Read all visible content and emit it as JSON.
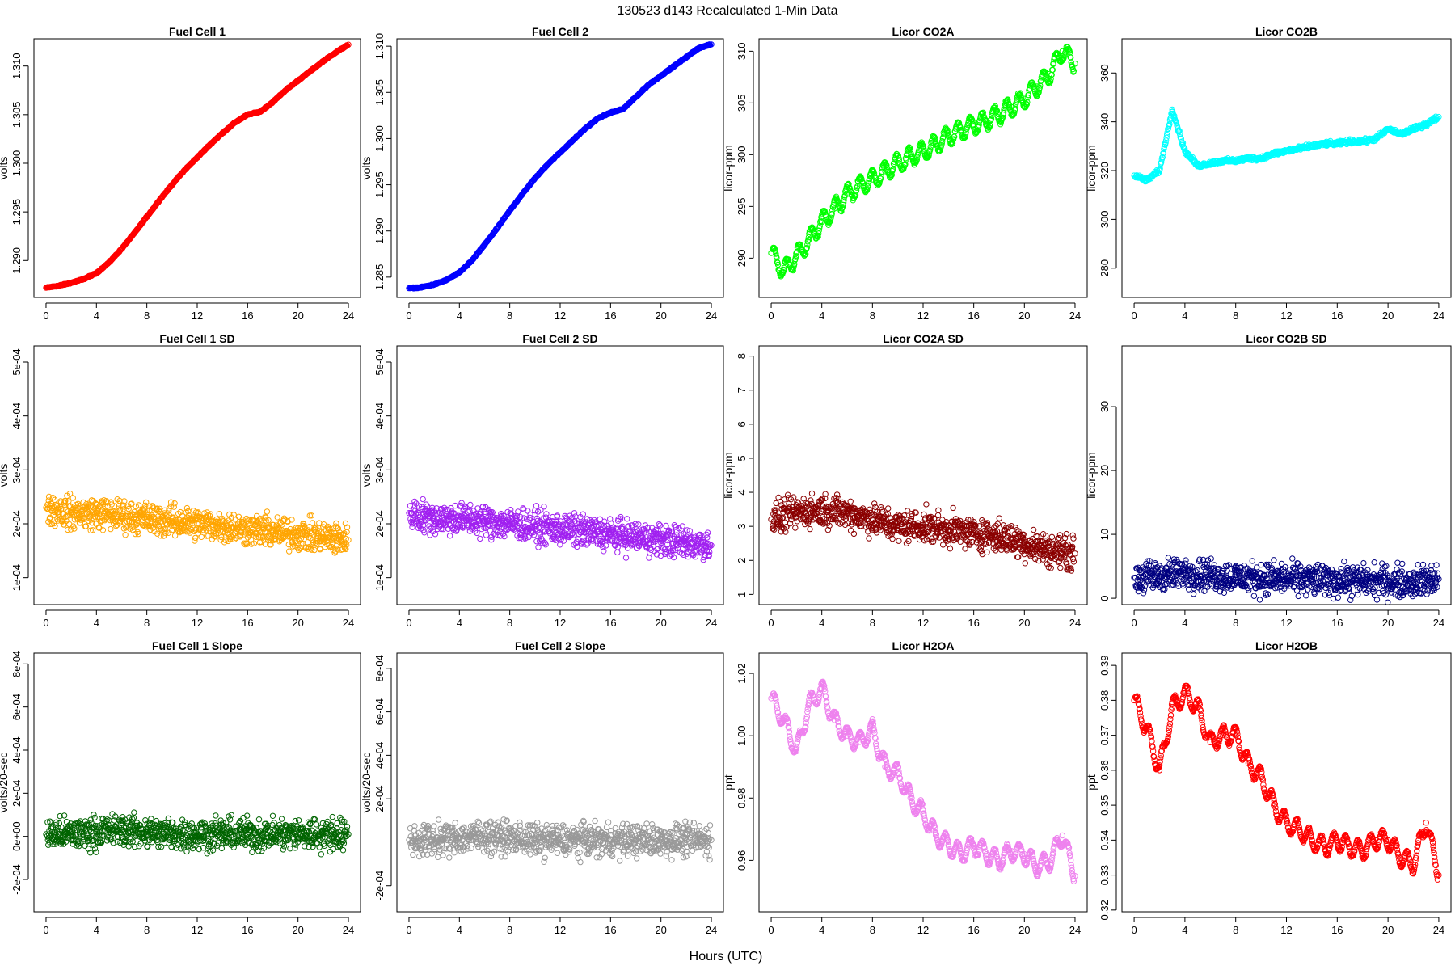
{
  "figure": {
    "title": "130523   d143   Recalculated 1-Min Data",
    "xlabel": "Hours (UTC)"
  },
  "chart_data": [
    {
      "type": "scatter",
      "id": "fc1",
      "title": "Fuel Cell 1",
      "ylabel": "volts",
      "color": "#ff0000",
      "xlim": [
        -0.96,
        24.96
      ],
      "ylim": [
        1.2862,
        1.3128
      ],
      "xticks": [
        0,
        4,
        8,
        12,
        16,
        20,
        24
      ],
      "yticks": [
        "1.290",
        "1.295",
        "1.300",
        "1.305",
        "1.310"
      ],
      "ytick_values": [
        1.29,
        1.295,
        1.3,
        1.305,
        1.31
      ],
      "x": [
        0,
        1,
        2,
        3,
        4,
        5,
        6,
        7,
        8,
        9,
        10,
        11,
        12,
        13,
        14,
        15,
        16,
        17,
        18,
        19,
        20,
        21,
        22,
        23,
        24
      ],
      "y": [
        1.2872,
        1.2874,
        1.2877,
        1.2881,
        1.2887,
        1.2898,
        1.2912,
        1.2928,
        1.2945,
        1.2962,
        1.2978,
        1.2993,
        1.3006,
        1.3019,
        1.3031,
        1.3042,
        1.305,
        1.3053,
        1.3063,
        1.3075,
        1.3085,
        1.3095,
        1.3105,
        1.3114,
        1.3122
      ]
    },
    {
      "type": "scatter",
      "id": "fc2",
      "title": "Fuel Cell 2",
      "ylabel": "volts",
      "color": "#0000ff",
      "xlim": [
        -0.96,
        24.96
      ],
      "ylim": [
        1.2828,
        1.3108
      ],
      "xticks": [
        0,
        4,
        8,
        12,
        16,
        20,
        24
      ],
      "yticks": [
        "1.285",
        "1.290",
        "1.295",
        "1.300",
        "1.305",
        "1.310"
      ],
      "ytick_values": [
        1.285,
        1.29,
        1.295,
        1.3,
        1.305,
        1.31
      ],
      "x": [
        0,
        1,
        2,
        3,
        4,
        5,
        6,
        7,
        8,
        9,
        10,
        11,
        12,
        13,
        14,
        15,
        16,
        17,
        18,
        19,
        20,
        21,
        22,
        23,
        24
      ],
      "y": [
        1.2838,
        1.2839,
        1.2842,
        1.2847,
        1.2855,
        1.2868,
        1.2885,
        1.2903,
        1.2922,
        1.294,
        1.2957,
        1.2972,
        1.2985,
        1.2998,
        1.3011,
        1.3022,
        1.3028,
        1.3032,
        1.3045,
        1.3058,
        1.3068,
        1.3078,
        1.3088,
        1.3098,
        1.3102
      ]
    },
    {
      "type": "scatter",
      "id": "co2a",
      "title": "Licor CO2A",
      "ylabel": "licor-ppm",
      "color": "#00ff00",
      "xlim": [
        -0.96,
        24.96
      ],
      "ylim": [
        286.2,
        311.2
      ],
      "xticks": [
        0,
        4,
        8,
        12,
        16,
        20,
        24
      ],
      "yticks": [
        "290",
        "295",
        "300",
        "305",
        "310"
      ],
      "ytick_values": [
        290,
        295,
        300,
        305,
        310
      ],
      "x": [
        0,
        1,
        2,
        3,
        4,
        5,
        6,
        7,
        8,
        9,
        10,
        11,
        12,
        13,
        14,
        15,
        16,
        17,
        18,
        19,
        20,
        21,
        22,
        23,
        24
      ],
      "y": [
        290.5,
        288.8,
        290.2,
        291.8,
        293.5,
        294.8,
        296.2,
        297.0,
        297.6,
        298.4,
        299.2,
        299.8,
        300.3,
        301.0,
        301.8,
        302.4,
        302.9,
        303.3,
        303.9,
        304.6,
        305.4,
        306.6,
        307.8,
        310.0,
        308.8
      ]
    },
    {
      "type": "scatter",
      "id": "co2b",
      "title": "Licor CO2B",
      "ylabel": "licor-ppm",
      "color": "#00ffff",
      "xlim": [
        -0.96,
        24.96
      ],
      "ylim": [
        268,
        374
      ],
      "xticks": [
        0,
        4,
        8,
        12,
        16,
        20,
        24
      ],
      "yticks": [
        "280",
        "300",
        "320",
        "340",
        "360"
      ],
      "ytick_values": [
        280,
        300,
        320,
        340,
        360
      ],
      "x": [
        0,
        1,
        2,
        3,
        4,
        5,
        6,
        7,
        8,
        9,
        10,
        11,
        12,
        13,
        14,
        15,
        16,
        17,
        18,
        19,
        20,
        21,
        22,
        23,
        24
      ],
      "y": [
        318,
        316,
        320,
        345,
        328,
        322,
        323,
        324,
        324,
        325,
        325,
        327,
        328,
        329,
        330,
        331,
        331,
        332,
        332,
        333,
        337,
        335,
        337,
        339,
        342
      ]
    },
    {
      "type": "scatter",
      "id": "fc1sd",
      "title": "Fuel Cell 1 SD",
      "ylabel": "volts",
      "color": "#ffa500",
      "xlim": [
        -0.96,
        24.96
      ],
      "ylim": [
        5e-05,
        0.00053
      ],
      "xticks": [
        0,
        4,
        8,
        12,
        16,
        20,
        24
      ],
      "yticks": [
        "1e-04",
        "2e-04",
        "3e-04",
        "4e-04",
        "5e-04"
      ],
      "ytick_values": [
        0.0001,
        0.0002,
        0.0003,
        0.0004,
        0.0005
      ],
      "x": [
        0,
        2,
        4,
        6,
        8,
        10,
        12,
        14,
        16,
        18,
        20,
        22,
        24
      ],
      "y": [
        0.00023,
        0.00022,
        0.00022,
        0.000215,
        0.00021,
        0.000205,
        0.0002,
        0.000195,
        0.00019,
        0.000185,
        0.00018,
        0.000175,
        0.00017
      ]
    },
    {
      "type": "scatter",
      "id": "fc2sd",
      "title": "Fuel Cell 2 SD",
      "ylabel": "volts",
      "color": "#a020f0",
      "xlim": [
        -0.96,
        24.96
      ],
      "ylim": [
        5e-05,
        0.00053
      ],
      "xticks": [
        0,
        4,
        8,
        12,
        16,
        20,
        24
      ],
      "yticks": [
        "1e-04",
        "2e-04",
        "3e-04",
        "4e-04",
        "5e-04"
      ],
      "ytick_values": [
        0.0001,
        0.0002,
        0.0003,
        0.0004,
        0.0005
      ],
      "x": [
        0,
        2,
        4,
        6,
        8,
        10,
        12,
        14,
        16,
        18,
        20,
        22,
        24
      ],
      "y": [
        0.00022,
        0.00021,
        0.00021,
        0.000205,
        0.0002,
        0.000195,
        0.00019,
        0.000185,
        0.00018,
        0.000175,
        0.00017,
        0.000165,
        0.00016
      ]
    },
    {
      "type": "scatter",
      "id": "co2asd",
      "title": "Licor CO2A SD",
      "ylabel": "licor-ppm",
      "color": "#8b0000",
      "xlim": [
        -0.96,
        24.96
      ],
      "ylim": [
        0.7,
        8.3
      ],
      "xticks": [
        0,
        4,
        8,
        12,
        16,
        20,
        24
      ],
      "yticks": [
        "1",
        "2",
        "3",
        "4",
        "5",
        "6",
        "7",
        "8"
      ],
      "ytick_values": [
        1,
        2,
        3,
        4,
        5,
        6,
        7,
        8
      ],
      "x": [
        0,
        2,
        4,
        6,
        8,
        10,
        12,
        14,
        16,
        18,
        20,
        22,
        24
      ],
      "y": [
        3.2,
        3.4,
        3.5,
        3.4,
        3.2,
        3.0,
        3.0,
        2.9,
        2.8,
        2.7,
        2.5,
        2.3,
        2.2
      ]
    },
    {
      "type": "scatter",
      "id": "co2bsd",
      "title": "Licor CO2B SD",
      "ylabel": "licor-ppm",
      "color": "#000080",
      "xlim": [
        -0.96,
        24.96
      ],
      "ylim": [
        -1,
        39.5
      ],
      "xticks": [
        0,
        4,
        8,
        12,
        16,
        20,
        24
      ],
      "yticks": [
        "0",
        "10",
        "20",
        "30"
      ],
      "ytick_values": [
        0,
        10,
        20,
        30
      ],
      "x": [
        0,
        2,
        4,
        6,
        8,
        10,
        12,
        14,
        16,
        18,
        20,
        22,
        24
      ],
      "y": [
        3.2,
        3.5,
        4.0,
        3.6,
        3.3,
        3.1,
        3.0,
        2.9,
        2.8,
        2.7,
        2.6,
        2.5,
        3.0
      ]
    },
    {
      "type": "scatter",
      "id": "fc1slope",
      "title": "Fuel Cell 1 Slope",
      "ylabel": "volts/20-sec",
      "color": "#006400",
      "xlim": [
        -0.96,
        24.96
      ],
      "ylim": [
        -0.00035,
        0.00085
      ],
      "xticks": [
        0,
        4,
        8,
        12,
        16,
        20,
        24
      ],
      "yticks": [
        "-2e-04",
        "0e+00",
        "2e-04",
        "4e-04",
        "6e-04",
        "8e-04"
      ],
      "ytick_values": [
        -0.0002,
        0,
        0.0002,
        0.0004,
        0.0006,
        0.0008
      ],
      "x": [
        0,
        2,
        4,
        6,
        8,
        10,
        12,
        14,
        16,
        18,
        20,
        22,
        24
      ],
      "y": [
        1e-05,
        1e-05,
        2e-05,
        3e-05,
        2e-05,
        1e-05,
        1e-05,
        1e-05,
        1e-05,
        1e-05,
        1e-05,
        1e-05,
        1e-05
      ]
    },
    {
      "type": "scatter",
      "id": "fc2slope",
      "title": "Fuel Cell 2 Slope",
      "ylabel": "volts/20-sec",
      "color": "#999999",
      "xlim": [
        -0.96,
        24.96
      ],
      "ylim": [
        -0.00032,
        0.00087
      ],
      "xticks": [
        0,
        4,
        8,
        12,
        16,
        20,
        24
      ],
      "yticks": [
        "-2e-04",
        "2e-04",
        "4e-04",
        "6e-04",
        "8e-04"
      ],
      "ytick_values": [
        -0.0002,
        0.0002,
        0.0004,
        0.0006,
        0.0008
      ],
      "x": [
        0,
        2,
        4,
        6,
        8,
        10,
        12,
        14,
        16,
        18,
        20,
        22,
        24
      ],
      "y": [
        1e-05,
        1e-05,
        2e-05,
        3e-05,
        2e-05,
        1e-05,
        1e-05,
        1e-05,
        1e-05,
        1e-05,
        1e-05,
        1e-05,
        1e-05
      ]
    },
    {
      "type": "scatter",
      "id": "h2oa",
      "title": "Licor H2OA",
      "ylabel": "ppt",
      "color": "#ee82ee",
      "xlim": [
        -0.96,
        24.96
      ],
      "ylim": [
        0.9435,
        1.0265
      ],
      "xticks": [
        0,
        4,
        8,
        12,
        16,
        20,
        24
      ],
      "yticks": [
        "0.96",
        "0.98",
        "1.00",
        "1.02"
      ],
      "ytick_values": [
        0.96,
        0.98,
        1.0,
        1.02
      ],
      "x": [
        0,
        1,
        2,
        3,
        4,
        5,
        6,
        7,
        8,
        9,
        10,
        11,
        12,
        13,
        14,
        15,
        16,
        17,
        18,
        19,
        20,
        21,
        22,
        23,
        24
      ],
      "y": [
        1.012,
        1.005,
        0.995,
        1.01,
        1.015,
        1.005,
        1.0,
        0.998,
        1.002,
        0.99,
        0.988,
        0.98,
        0.975,
        0.968,
        0.965,
        0.962,
        0.965,
        0.962,
        0.96,
        0.963,
        0.962,
        0.958,
        0.96,
        0.968,
        0.955
      ]
    },
    {
      "type": "scatter",
      "id": "h2ob",
      "title": "Licor H2OB",
      "ylabel": "ppt",
      "color": "#ff0000",
      "xlim": [
        -0.96,
        24.96
      ],
      "ylim": [
        0.3195,
        0.3935
      ],
      "xticks": [
        0,
        4,
        8,
        12,
        16,
        20,
        24
      ],
      "yticks": [
        "0.32",
        "0.33",
        "0.34",
        "0.35",
        "0.36",
        "0.37",
        "0.38",
        "0.39"
      ],
      "ytick_values": [
        0.32,
        0.33,
        0.34,
        0.35,
        0.36,
        0.37,
        0.38,
        0.39
      ],
      "x": [
        0,
        1,
        2,
        3,
        4,
        5,
        6,
        7,
        8,
        9,
        10,
        11,
        12,
        13,
        14,
        15,
        16,
        17,
        18,
        19,
        20,
        21,
        22,
        23,
        24
      ],
      "y": [
        0.38,
        0.372,
        0.36,
        0.378,
        0.382,
        0.378,
        0.368,
        0.37,
        0.37,
        0.362,
        0.358,
        0.35,
        0.345,
        0.343,
        0.34,
        0.338,
        0.34,
        0.338,
        0.337,
        0.34,
        0.34,
        0.335,
        0.333,
        0.345,
        0.33
      ]
    }
  ]
}
